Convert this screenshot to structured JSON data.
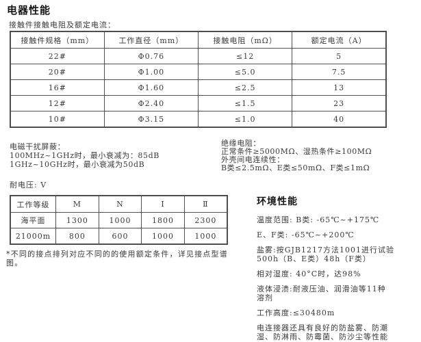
{
  "page": {
    "title": "电器性能",
    "subtitle": "接触件接触电阻及额定电流："
  },
  "contact_table": {
    "headers": [
      "接触件规格（mm）",
      "工作直径（mm）",
      "接触电阻（mΩ）",
      "额定电流（A）"
    ],
    "rows": [
      [
        "22#",
        "Φ0.76",
        "≤12",
        "5"
      ],
      [
        "20#",
        "Φ1.00",
        "≤5.0",
        "7.5"
      ],
      [
        "16#",
        "Φ1.60",
        "≤2.5",
        "13"
      ],
      [
        "12#",
        "Φ2.40",
        "≤1.5",
        "23"
      ],
      [
        "10#",
        "Φ3.15",
        "≤1.0",
        "40"
      ]
    ]
  },
  "emi_block": {
    "lines": [
      "电磁干扰屏蔽：",
      "100MHz~1GHz时，最小衰减为：85dB",
      "1GHz~10GHz时，最小衰减为50dB"
    ]
  },
  "insulation_block": {
    "lines": [
      "绝缘电阻：",
      "正常条件≥5000MΩ、湿热条件≥100MΩ",
      "外壳间电连续性：",
      "B类≤2.5mΩ、E类≤50mΩ、F类≤1mΩ"
    ]
  },
  "voltage_section": {
    "label": "耐电压: V",
    "table": {
      "headers": [
        "工作等级",
        "M",
        "N",
        "Ⅰ",
        "Ⅱ"
      ],
      "rows": [
        [
          "海平面",
          "1300",
          "1000",
          "1800",
          "2300"
        ],
        [
          "21000m",
          "800",
          "600",
          "1000",
          "1000"
        ]
      ]
    }
  },
  "footnote": {
    "lines": [
      "*不同的接点排列对应不同的的使用额定条件，详见接点型谱",
      "图。"
    ]
  },
  "environment": {
    "title": "环境性能",
    "paragraphs": [
      [
        "温度范围: B类: -65℃~+175℃"
      ],
      [
        "E、F类: -65℃~+200℃"
      ],
      [
        "盐雾:按GJB1217方法1001进行试验",
        "500h（B、E类）48h（F类）"
      ],
      [
        "相对湿度: 40°C时，达98%"
      ],
      [
        "液体浸渍:耐液压油、润滑油等11种",
        "溶剂"
      ],
      [
        "工作高度:≤30480m"
      ],
      [
        "电连接器还具有良好的防盐雾、防潮",
        "湿、防淋雨、防霉菌、防沙尘等性能"
      ]
    ]
  },
  "colors": {
    "text": "#3a3a3a",
    "heading": "#151515",
    "border": "#4d4d4d",
    "background": "#ffffff"
  }
}
